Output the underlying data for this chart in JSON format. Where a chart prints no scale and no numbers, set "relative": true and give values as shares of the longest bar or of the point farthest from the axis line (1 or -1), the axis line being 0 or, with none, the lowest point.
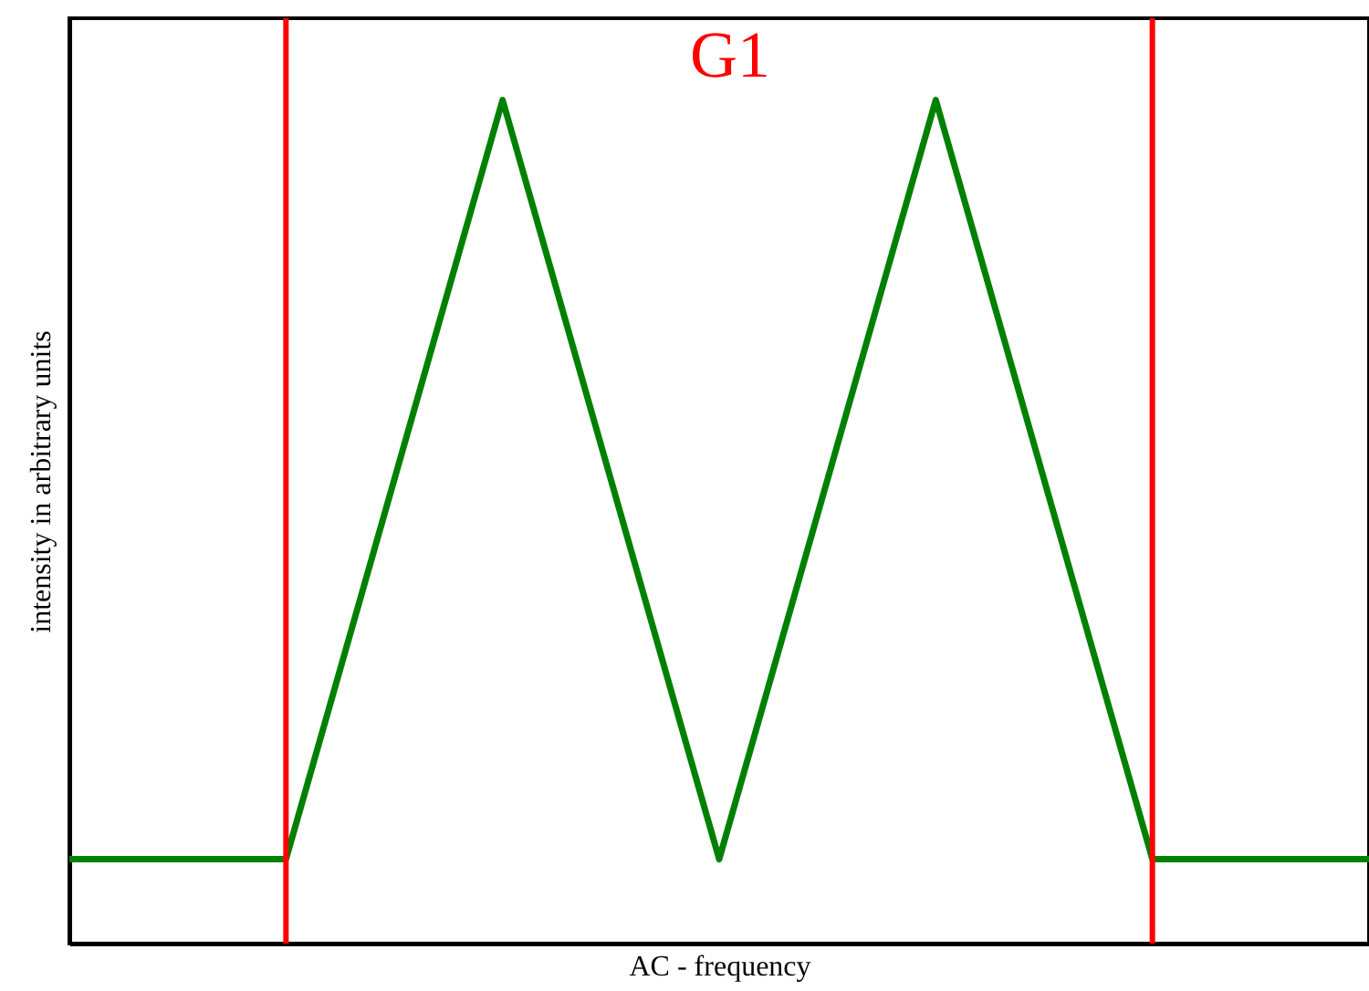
{
  "chart_data": {
    "type": "line",
    "title": "G1",
    "xlabel": "AC - frequency",
    "ylabel": "intensity in arbitrary units",
    "relative": true,
    "categories": [
      null,
      null,
      null,
      null,
      null,
      null,
      null
    ],
    "series": [
      {
        "color": "#008000",
        "values": [
          0.1,
          0.1,
          1,
          0.1,
          1,
          0.1,
          0.1
        ]
      }
    ],
    "grid": false,
    "marker": "none",
    "line_style": "solid",
    "tick_labels": false
  }
}
